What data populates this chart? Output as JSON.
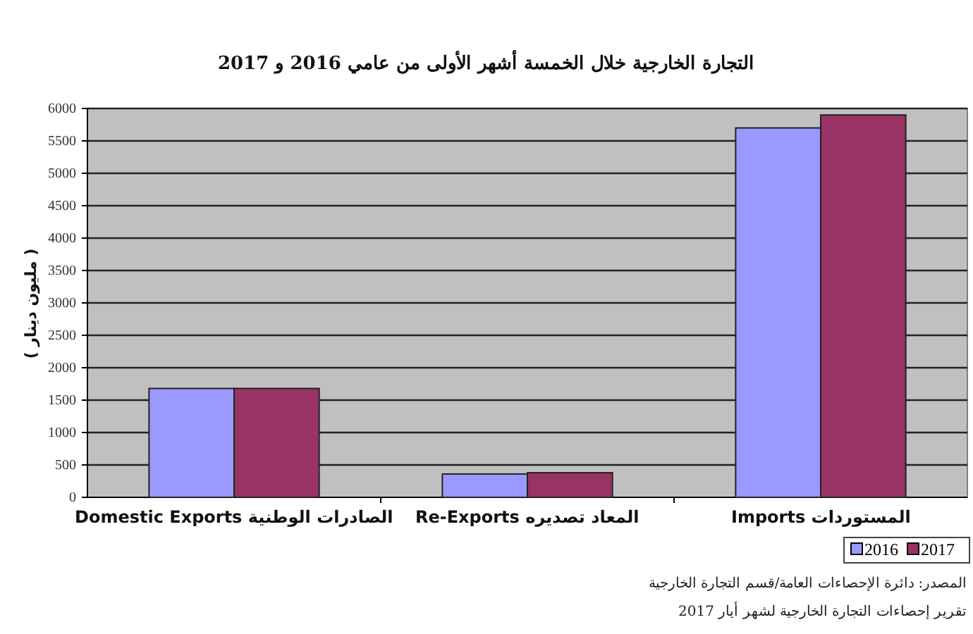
{
  "chart_data": {
    "type": "bar",
    "title": "التجارة الخارجية خلال الخمسة أشهر الأولى من عامي 2016 و 2017",
    "ylabel": "( مليون دينار )",
    "categories": [
      "Domestic Exports الصادرات الوطنية",
      "Re-Exports المعاد تصديره",
      "Imports المستوردات"
    ],
    "series": [
      {
        "name": "2016",
        "color": "#9999ff",
        "values": [
          1680,
          360,
          5700
        ]
      },
      {
        "name": "2017",
        "color": "#993366",
        "values": [
          1680,
          380,
          5900
        ]
      }
    ],
    "ylim": [
      0,
      6000
    ],
    "yticks": [
      0,
      500,
      1000,
      1500,
      2000,
      2500,
      3000,
      3500,
      4000,
      4500,
      5000,
      5500,
      6000
    ],
    "grid": "y",
    "legend": "bottom right",
    "annotations": [
      "المصدر: دائرة الإحصاءات العامة/قسم التجارة الخارجية",
      "تقرير إحصاءات التجارة الخارجية لشهر أيار 2017"
    ]
  }
}
